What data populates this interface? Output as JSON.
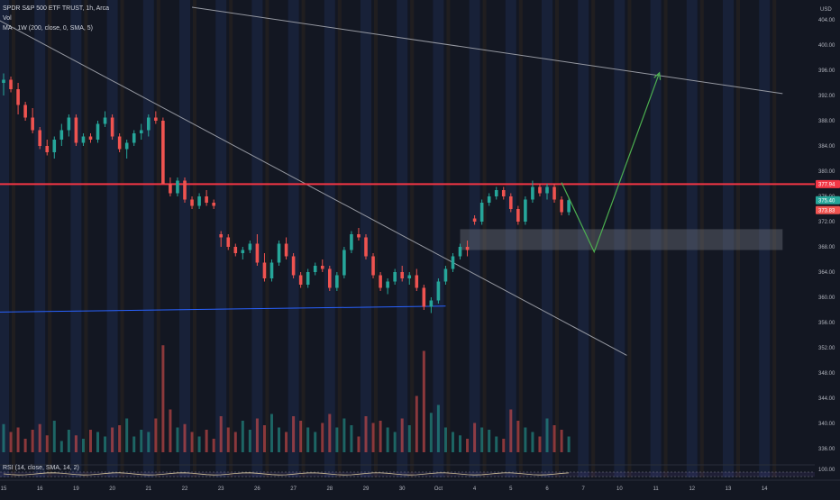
{
  "legend": {
    "title": "SPDR S&P 500 ETF TRUST, 1h, Arca",
    "vol": "Vol",
    "ma": "MA · 1W (200, close, 0, SMA, 5)",
    "rsi": "RSI (14, close, SMA, 14, 2)"
  },
  "colors": {
    "background": "#131722",
    "up": "#26a69a",
    "down": "#ef5350",
    "resistance": "#f23645",
    "trendline": "#9598a1",
    "support": "#2962ff",
    "projection": "#4caf50",
    "zone": "#787b86",
    "label_up": "#26a69a",
    "label_down": "#ef5350",
    "label_resistance": "#f23645"
  },
  "chart_data": {
    "type": "candlestick",
    "currency": "USD",
    "ylim": [
      334,
      406
    ],
    "y_ticks": [
      "404.00",
      "400.00",
      "396.00",
      "392.00",
      "388.00",
      "384.00",
      "380.00",
      "376.00",
      "372.00",
      "368.00",
      "364.00",
      "360.00",
      "356.00",
      "352.00",
      "348.00",
      "344.00",
      "340.00",
      "336.00"
    ],
    "x_ticks": [
      {
        "label": "15",
        "x": 0
      },
      {
        "label": "16",
        "x": 1
      },
      {
        "label": "19",
        "x": 2
      },
      {
        "label": "20",
        "x": 3
      },
      {
        "label": "21",
        "x": 4
      },
      {
        "label": "22",
        "x": 5
      },
      {
        "label": "23",
        "x": 6
      },
      {
        "label": "26",
        "x": 7
      },
      {
        "label": "27",
        "x": 8
      },
      {
        "label": "28",
        "x": 9
      },
      {
        "label": "29",
        "x": 10
      },
      {
        "label": "30",
        "x": 11
      },
      {
        "label": "Oct",
        "x": 12
      },
      {
        "label": "4",
        "x": 13
      },
      {
        "label": "5",
        "x": 14
      },
      {
        "label": "6",
        "x": 15
      },
      {
        "label": "7",
        "x": 16
      },
      {
        "label": "10",
        "x": 17
      },
      {
        "label": "11",
        "x": 18
      },
      {
        "label": "12",
        "x": 19
      },
      {
        "label": "13",
        "x": 20
      },
      {
        "label": "14",
        "x": 21
      }
    ],
    "price_labels": [
      {
        "text": "377.94",
        "value": 377.94,
        "style": "resistance"
      },
      {
        "text": "375.40",
        "value": 375.4,
        "style": "up"
      },
      {
        "text": "373.83",
        "value": 373.83,
        "style": "down"
      }
    ],
    "rsi_labels": [
      "100.00"
    ],
    "candles": [
      [
        0,
        394,
        395.5,
        392,
        394.5
      ],
      [
        0.2,
        394.5,
        395,
        392.5,
        393
      ],
      [
        0.4,
        393,
        394,
        389,
        390.5
      ],
      [
        0.6,
        390.5,
        391,
        388,
        388.5
      ],
      [
        0.8,
        388.5,
        390,
        386,
        386.5
      ],
      [
        1,
        386.5,
        387,
        383.5,
        384
      ],
      [
        1.2,
        384,
        385,
        382.5,
        383
      ],
      [
        1.4,
        383,
        385.5,
        382,
        385
      ],
      [
        1.6,
        385,
        387.5,
        384,
        386.5
      ],
      [
        1.8,
        386.5,
        389,
        385.5,
        388.5
      ],
      [
        2,
        388.5,
        389,
        384,
        384.5
      ],
      [
        2.2,
        384.5,
        386,
        384,
        385.5
      ],
      [
        2.4,
        385.5,
        386,
        384.5,
        385
      ],
      [
        2.6,
        385,
        388,
        384.5,
        387.5
      ],
      [
        2.8,
        387.5,
        389.5,
        387,
        388.5
      ],
      [
        3,
        388.5,
        389,
        385,
        385.5
      ],
      [
        3.2,
        385.5,
        386,
        383,
        383.5
      ],
      [
        3.4,
        383.5,
        385,
        382,
        384.5
      ],
      [
        3.6,
        384.5,
        386.5,
        384,
        386
      ],
      [
        3.8,
        386,
        387.5,
        385,
        386.5
      ],
      [
        4,
        386.5,
        389,
        385.5,
        388.5
      ],
      [
        4.2,
        388.5,
        389.5,
        387.5,
        388
      ],
      [
        4.4,
        388,
        388.5,
        378,
        378
      ],
      [
        4.6,
        378,
        379,
        376,
        376.5
      ],
      [
        4.8,
        376.5,
        379,
        376,
        378.5
      ],
      [
        5,
        378.5,
        379,
        375,
        375.5
      ],
      [
        5.2,
        375.5,
        376,
        374,
        374.5
      ],
      [
        5.4,
        374.5,
        376.5,
        374,
        376
      ],
      [
        5.6,
        376,
        377,
        374.5,
        375
      ],
      [
        5.8,
        375,
        375.5,
        374,
        374.5
      ],
      [
        6,
        370,
        370.5,
        368,
        369.5
      ],
      [
        6.2,
        369.5,
        370,
        367.5,
        368
      ],
      [
        6.4,
        368,
        368.5,
        366.5,
        367
      ],
      [
        6.6,
        367,
        368,
        366,
        367.5
      ],
      [
        6.8,
        367.5,
        369,
        367,
        368.5
      ],
      [
        7,
        368.5,
        370,
        365,
        365.5
      ],
      [
        7.2,
        365.5,
        367,
        362.5,
        363
      ],
      [
        7.4,
        363,
        366,
        362.5,
        365.5
      ],
      [
        7.6,
        365.5,
        369,
        365,
        368.5
      ],
      [
        7.8,
        368.5,
        369.5,
        366,
        366.5
      ],
      [
        8,
        366.5,
        367,
        363,
        363.5
      ],
      [
        8.2,
        363.5,
        364,
        361.5,
        362
      ],
      [
        8.4,
        362,
        364.5,
        361.5,
        364
      ],
      [
        8.6,
        364,
        365.5,
        363.5,
        365
      ],
      [
        8.8,
        365,
        366,
        364,
        364.5
      ],
      [
        9,
        364.5,
        365,
        361,
        361.5
      ],
      [
        9.2,
        361.5,
        364,
        361,
        363.5
      ],
      [
        9.4,
        363.5,
        368,
        363,
        367.5
      ],
      [
        9.6,
        367.5,
        370.5,
        367,
        370
      ],
      [
        9.8,
        370,
        371,
        369,
        369.5
      ],
      [
        10,
        369.5,
        370,
        366,
        366.5
      ],
      [
        10.2,
        366.5,
        367,
        363,
        363.5
      ],
      [
        10.4,
        363.5,
        364,
        361,
        361.5
      ],
      [
        10.6,
        361.5,
        363,
        360.5,
        362.5
      ],
      [
        10.8,
        362.5,
        364.5,
        362,
        364
      ],
      [
        11,
        364,
        365,
        362.5,
        363
      ],
      [
        11.2,
        363,
        364,
        362,
        363.5
      ],
      [
        11.4,
        363.5,
        364.5,
        361,
        361.5
      ],
      [
        11.6,
        361.5,
        362,
        358,
        358.5
      ],
      [
        11.8,
        358.5,
        360,
        357.5,
        359.5
      ],
      [
        12,
        359.5,
        363,
        359,
        362.5
      ],
      [
        12.2,
        362.5,
        365,
        362,
        364.5
      ],
      [
        12.4,
        364.5,
        367,
        364,
        366.5
      ],
      [
        12.6,
        366.5,
        368.5,
        366,
        368
      ],
      [
        12.8,
        368,
        369,
        366.5,
        367.5
      ],
      [
        13,
        372.5,
        373,
        371.5,
        372
      ],
      [
        13.2,
        372,
        375.5,
        371.5,
        375
      ],
      [
        13.4,
        375,
        376.5,
        374.5,
        376
      ],
      [
        13.6,
        376,
        377.5,
        375.5,
        377
      ],
      [
        13.8,
        377,
        377.5,
        375.5,
        376
      ],
      [
        14,
        376,
        376.5,
        373.5,
        374
      ],
      [
        14.2,
        374,
        374.5,
        371.5,
        372
      ],
      [
        14.4,
        372,
        376,
        371.5,
        375.5
      ],
      [
        14.6,
        375.5,
        378.5,
        375,
        377.5
      ],
      [
        14.8,
        377.5,
        378,
        376,
        376.5
      ],
      [
        15,
        376.5,
        378,
        375.5,
        377.5
      ],
      [
        15.2,
        377.5,
        378,
        375,
        375.5
      ],
      [
        15.4,
        375.5,
        376,
        373,
        373.5
      ],
      [
        15.6,
        373.5,
        375.8,
        373,
        375.4
      ]
    ],
    "volumes": [
      [
        0,
        0.25
      ],
      [
        0.2,
        0.18
      ],
      [
        0.4,
        0.22
      ],
      [
        0.6,
        0.12
      ],
      [
        0.8,
        0.2
      ],
      [
        1,
        0.25
      ],
      [
        1.2,
        0.15
      ],
      [
        1.4,
        0.28
      ],
      [
        1.6,
        0.1
      ],
      [
        1.8,
        0.2
      ],
      [
        2,
        0.15
      ],
      [
        2.2,
        0.12
      ],
      [
        2.4,
        0.2
      ],
      [
        2.6,
        0.18
      ],
      [
        2.8,
        0.14
      ],
      [
        3,
        0.22
      ],
      [
        3.2,
        0.24
      ],
      [
        3.4,
        0.3
      ],
      [
        3.6,
        0.14
      ],
      [
        3.8,
        0.2
      ],
      [
        4,
        0.18
      ],
      [
        4.2,
        0.3
      ],
      [
        4.4,
        0.95
      ],
      [
        4.6,
        0.38
      ],
      [
        4.8,
        0.22
      ],
      [
        5,
        0.25
      ],
      [
        5.2,
        0.18
      ],
      [
        5.4,
        0.14
      ],
      [
        5.6,
        0.2
      ],
      [
        5.8,
        0.12
      ],
      [
        6,
        0.32
      ],
      [
        6.2,
        0.22
      ],
      [
        6.4,
        0.18
      ],
      [
        6.6,
        0.28
      ],
      [
        6.8,
        0.2
      ],
      [
        7,
        0.3
      ],
      [
        7.2,
        0.24
      ],
      [
        7.4,
        0.34
      ],
      [
        7.6,
        0.22
      ],
      [
        7.8,
        0.18
      ],
      [
        8,
        0.32
      ],
      [
        8.2,
        0.28
      ],
      [
        8.4,
        0.22
      ],
      [
        8.6,
        0.18
      ],
      [
        8.8,
        0.26
      ],
      [
        9,
        0.34
      ],
      [
        9.2,
        0.22
      ],
      [
        9.4,
        0.3
      ],
      [
        9.6,
        0.24
      ],
      [
        9.8,
        0.14
      ],
      [
        10,
        0.32
      ],
      [
        10.2,
        0.26
      ],
      [
        10.4,
        0.28
      ],
      [
        10.6,
        0.22
      ],
      [
        10.8,
        0.18
      ],
      [
        11,
        0.3
      ],
      [
        11.2,
        0.24
      ],
      [
        11.4,
        0.5
      ],
      [
        11.6,
        0.9
      ],
      [
        11.8,
        0.35
      ],
      [
        12,
        0.42
      ],
      [
        12.2,
        0.22
      ],
      [
        12.4,
        0.18
      ],
      [
        12.6,
        0.15
      ],
      [
        12.8,
        0.12
      ],
      [
        13,
        0.26
      ],
      [
        13.2,
        0.22
      ],
      [
        13.4,
        0.2
      ],
      [
        13.6,
        0.14
      ],
      [
        13.8,
        0.12
      ],
      [
        14,
        0.38
      ],
      [
        14.2,
        0.28
      ],
      [
        14.4,
        0.22
      ],
      [
        14.6,
        0.18
      ],
      [
        14.8,
        0.14
      ],
      [
        15,
        0.3
      ],
      [
        15.2,
        0.24
      ],
      [
        15.4,
        0.2
      ],
      [
        15.6,
        0.14
      ]
    ],
    "resistance_level": 377.94,
    "support_zone": [
      367.5,
      370.8
    ],
    "support_zone_x": [
      12.6,
      21.5
    ],
    "trendlines": [
      {
        "name": "upper-trendline",
        "from": [
          5.2,
          406
        ],
        "to": [
          21.5,
          392.3
        ]
      },
      {
        "name": "descending-trendline",
        "from": [
          -0.8,
          406
        ],
        "to": [
          17.2,
          350.8
        ]
      },
      {
        "name": "support-line",
        "from": [
          -0.8,
          357.6
        ],
        "to": [
          12.2,
          358.6
        ]
      }
    ],
    "projection": [
      [
        15.4,
        378.2
      ],
      [
        16.3,
        367.2
      ],
      [
        18.1,
        395.6
      ]
    ]
  }
}
